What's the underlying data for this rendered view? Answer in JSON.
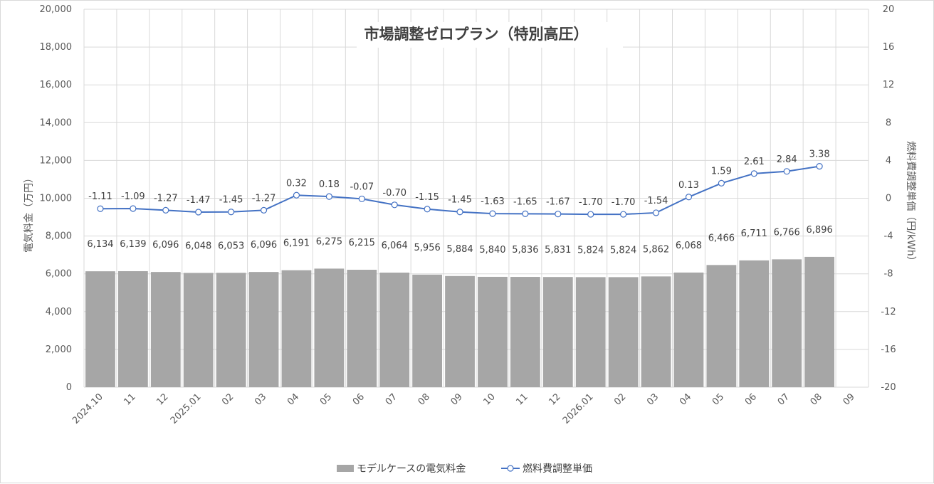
{
  "chart_data": {
    "type": "bar+line",
    "title": "市場調整ゼロプラン（特別高圧）",
    "ylabel": "電気料金（万円）",
    "y2label": "燃料費調整単価（円/kWh）",
    "categories": [
      "2024.10",
      "11",
      "12",
      "2025.01",
      "02",
      "03",
      "04",
      "05",
      "06",
      "07",
      "08",
      "09",
      "10",
      "11",
      "12",
      "2026.01",
      "02",
      "03",
      "04",
      "05",
      "06",
      "07",
      "08",
      "09"
    ],
    "ylim": [
      0,
      20000
    ],
    "y_ticks": [
      "0",
      "2,000",
      "4,000",
      "6,000",
      "8,000",
      "10,000",
      "12,000",
      "14,000",
      "16,000",
      "18,000",
      "20,000"
    ],
    "y2lim": [
      -20,
      20
    ],
    "y2_ticks": [
      "-20",
      "-16",
      "-12",
      "-8",
      "-4",
      "0",
      "4",
      "8",
      "12",
      "16",
      "20"
    ],
    "grid": true,
    "legend_position": "bottom",
    "series": [
      {
        "name": "モデルケースの電気料金",
        "type": "bar",
        "axis": "left",
        "color": "#a6a6a6",
        "values": [
          6134,
          6139,
          6096,
          6048,
          6053,
          6096,
          6191,
          6275,
          6215,
          6064,
          5956,
          5884,
          5840,
          5836,
          5831,
          5824,
          5824,
          5862,
          6068,
          6466,
          6711,
          6766,
          6896,
          null
        ],
        "labels": [
          "6,134",
          "6,139",
          "6,096",
          "6,048",
          "6,053",
          "6,096",
          "6,191",
          "6,275",
          "6,215",
          "6,064",
          "5,956",
          "5,884",
          "5,840",
          "5,836",
          "5,831",
          "5,824",
          "5,824",
          "5,862",
          "6,068",
          "6,466",
          "6,711",
          "6,766",
          "6,896",
          ""
        ]
      },
      {
        "name": "燃料費調整単価",
        "type": "line",
        "axis": "right",
        "color": "#4472c4",
        "values": [
          -1.11,
          -1.09,
          -1.27,
          -1.47,
          -1.45,
          -1.27,
          0.32,
          0.18,
          -0.07,
          -0.7,
          -1.15,
          -1.45,
          -1.63,
          -1.65,
          -1.67,
          -1.7,
          -1.7,
          -1.54,
          0.13,
          1.59,
          2.61,
          2.84,
          3.38,
          null
        ],
        "labels": [
          "-1.11",
          "-1.09",
          "-1.27",
          "-1.47",
          "-1.45",
          "-1.27",
          "0.32",
          "0.18",
          "-0.07",
          "-0.70",
          "-1.15",
          "-1.45",
          "-1.63",
          "-1.65",
          "-1.67",
          "-1.70",
          "-1.70",
          "-1.54",
          "0.13",
          "1.59",
          "2.61",
          "2.84",
          "3.38",
          ""
        ]
      }
    ]
  }
}
